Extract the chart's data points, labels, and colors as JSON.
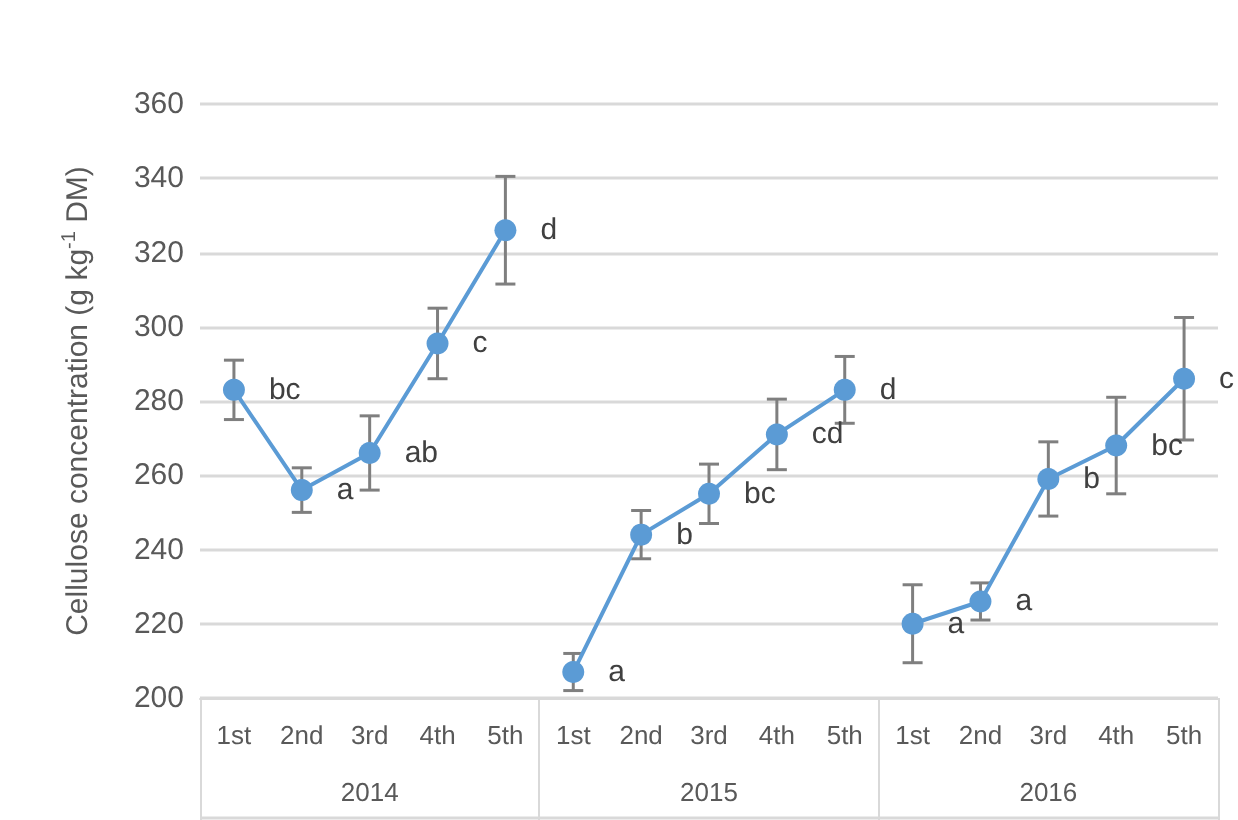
{
  "chart_data": {
    "type": "line",
    "ylabel": "Cellulose concentration (g kg$^{-1}$ DM)",
    "categories": [
      "1st",
      "2nd",
      "3rd",
      "4th",
      "5th",
      "1st",
      "2nd",
      "3rd",
      "4th",
      "5th",
      "1st",
      "2nd",
      "3rd",
      "4th",
      "5th"
    ],
    "annotations": [
      "2014",
      "2015",
      "2016"
    ],
    "series": [
      {
        "color": "#5b9bd5",
        "values": [
          283,
          256,
          266,
          295.5,
          326,
          null,
          null,
          null,
          null,
          null,
          null,
          null,
          null,
          null,
          null
        ],
        "errors": [
          8,
          6,
          10,
          9.5,
          14.5,
          null,
          null,
          null,
          null,
          null,
          null,
          null,
          null,
          null,
          null
        ],
        "value_labels": [
          "bc",
          "a",
          "ab",
          "c",
          "d",
          null,
          null,
          null,
          null,
          null,
          null,
          null,
          null,
          null,
          null
        ]
      },
      {
        "color": "#5b9bd5",
        "values": [
          null,
          null,
          null,
          null,
          null,
          207,
          244,
          255,
          271,
          283,
          null,
          null,
          null,
          null,
          null
        ],
        "errors": [
          null,
          null,
          null,
          null,
          null,
          5,
          6.5,
          8,
          9.5,
          9,
          null,
          null,
          null,
          null,
          null
        ],
        "value_labels": [
          null,
          null,
          null,
          null,
          null,
          "a",
          "b",
          "bc",
          "cd",
          "d",
          null,
          null,
          null,
          null,
          null
        ]
      },
      {
        "color": "#5b9bd5",
        "values": [
          null,
          null,
          null,
          null,
          null,
          null,
          null,
          null,
          null,
          null,
          220,
          226,
          259,
          268,
          286
        ],
        "errors": [
          null,
          null,
          null,
          null,
          null,
          null,
          null,
          null,
          null,
          null,
          10.5,
          5,
          10,
          13,
          16.5
        ],
        "value_labels": [
          null,
          null,
          null,
          null,
          null,
          null,
          null,
          null,
          null,
          null,
          "a",
          "a",
          "b",
          "bc",
          "c"
        ]
      }
    ],
    "ylim": [
      200,
      360
    ],
    "yticks": [
      200,
      220,
      240,
      260,
      280,
      300,
      320,
      340,
      360
    ],
    "grid": "y",
    "marker": "circle",
    "line_style": "solid"
  }
}
